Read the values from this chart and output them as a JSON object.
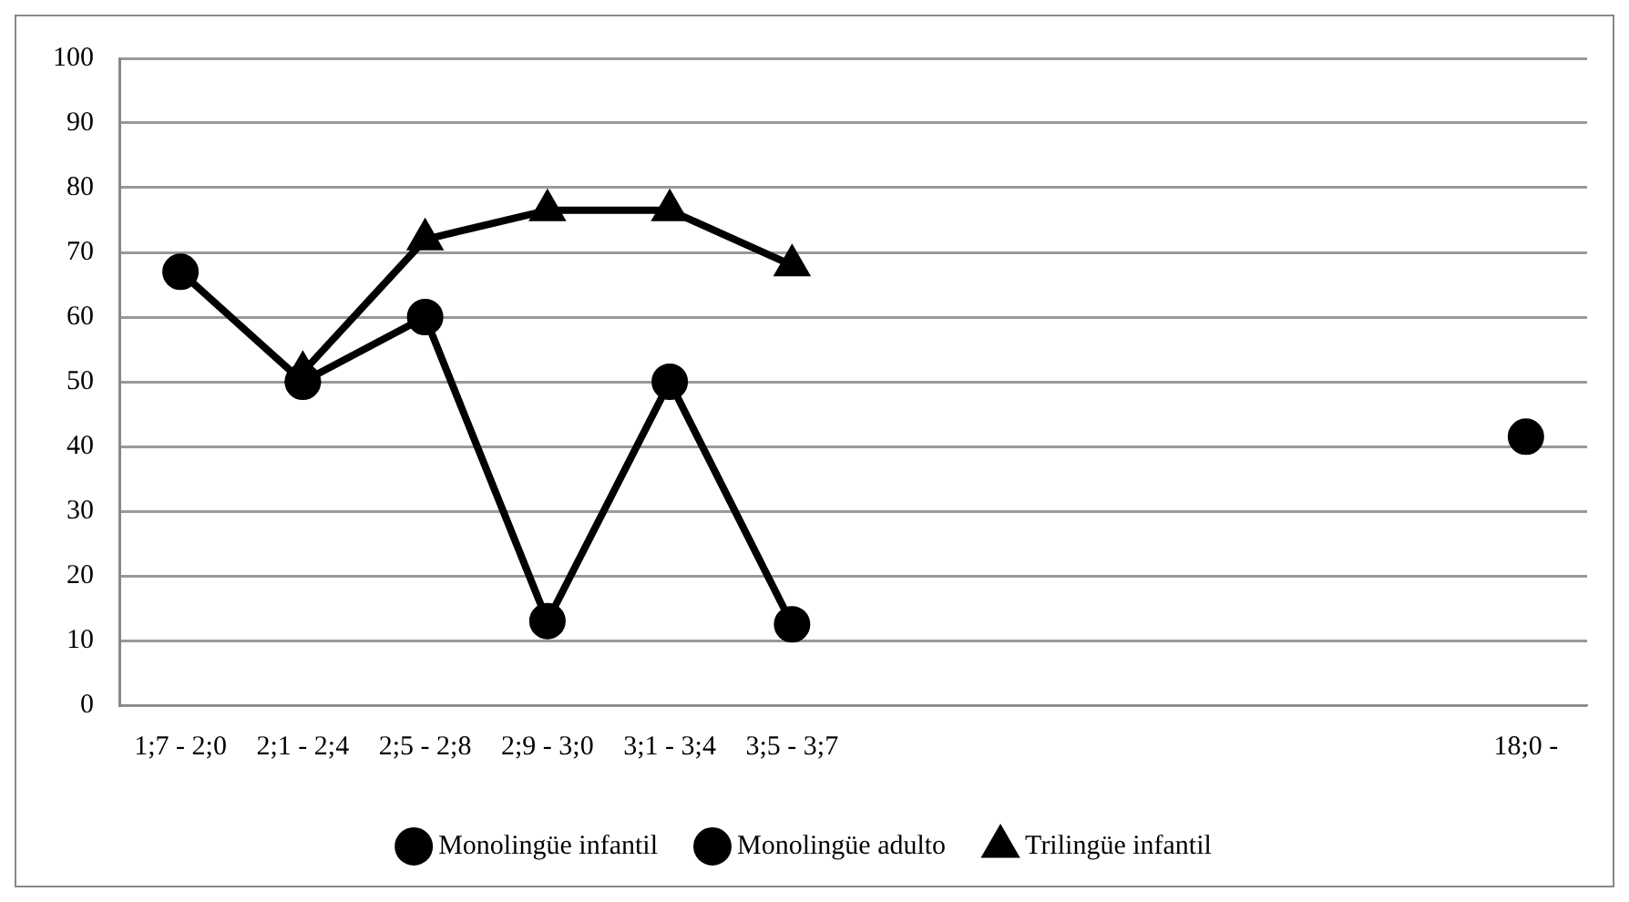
{
  "chart_data": {
    "type": "line",
    "categories": [
      "1;7 - 2;0",
      "2;1 - 2;4",
      "2;5 - 2;8",
      "2;9 - 3;0",
      "3;1 - 3;4",
      "3;5 - 3;7",
      null,
      null,
      null,
      null,
      null,
      "18;0 -"
    ],
    "series": [
      {
        "name": "Monolingüe infantil",
        "color": "#000000",
        "marker": "circle",
        "line_style": "solid",
        "values": [
          67,
          50,
          60,
          13,
          50,
          12.5,
          null,
          null,
          null,
          null,
          null,
          null
        ]
      },
      {
        "name": "Monolingüe adulto",
        "color": "#000000",
        "marker": "circle",
        "line_style": "dashed",
        "values": [
          null,
          null,
          null,
          null,
          null,
          null,
          null,
          null,
          null,
          null,
          null,
          41.5
        ]
      },
      {
        "name": "Trilingüe infantil",
        "color": "#000000",
        "marker": "triangle",
        "line_style": "solid",
        "values": [
          null,
          51.5,
          72,
          76.5,
          76.5,
          68,
          null,
          null,
          null,
          null,
          null,
          null
        ]
      }
    ],
    "ylim": [
      0,
      100
    ],
    "yticks": [
      0,
      10,
      20,
      30,
      40,
      50,
      60,
      70,
      80,
      90,
      100
    ],
    "grid": "y",
    "legend": "bottom"
  }
}
